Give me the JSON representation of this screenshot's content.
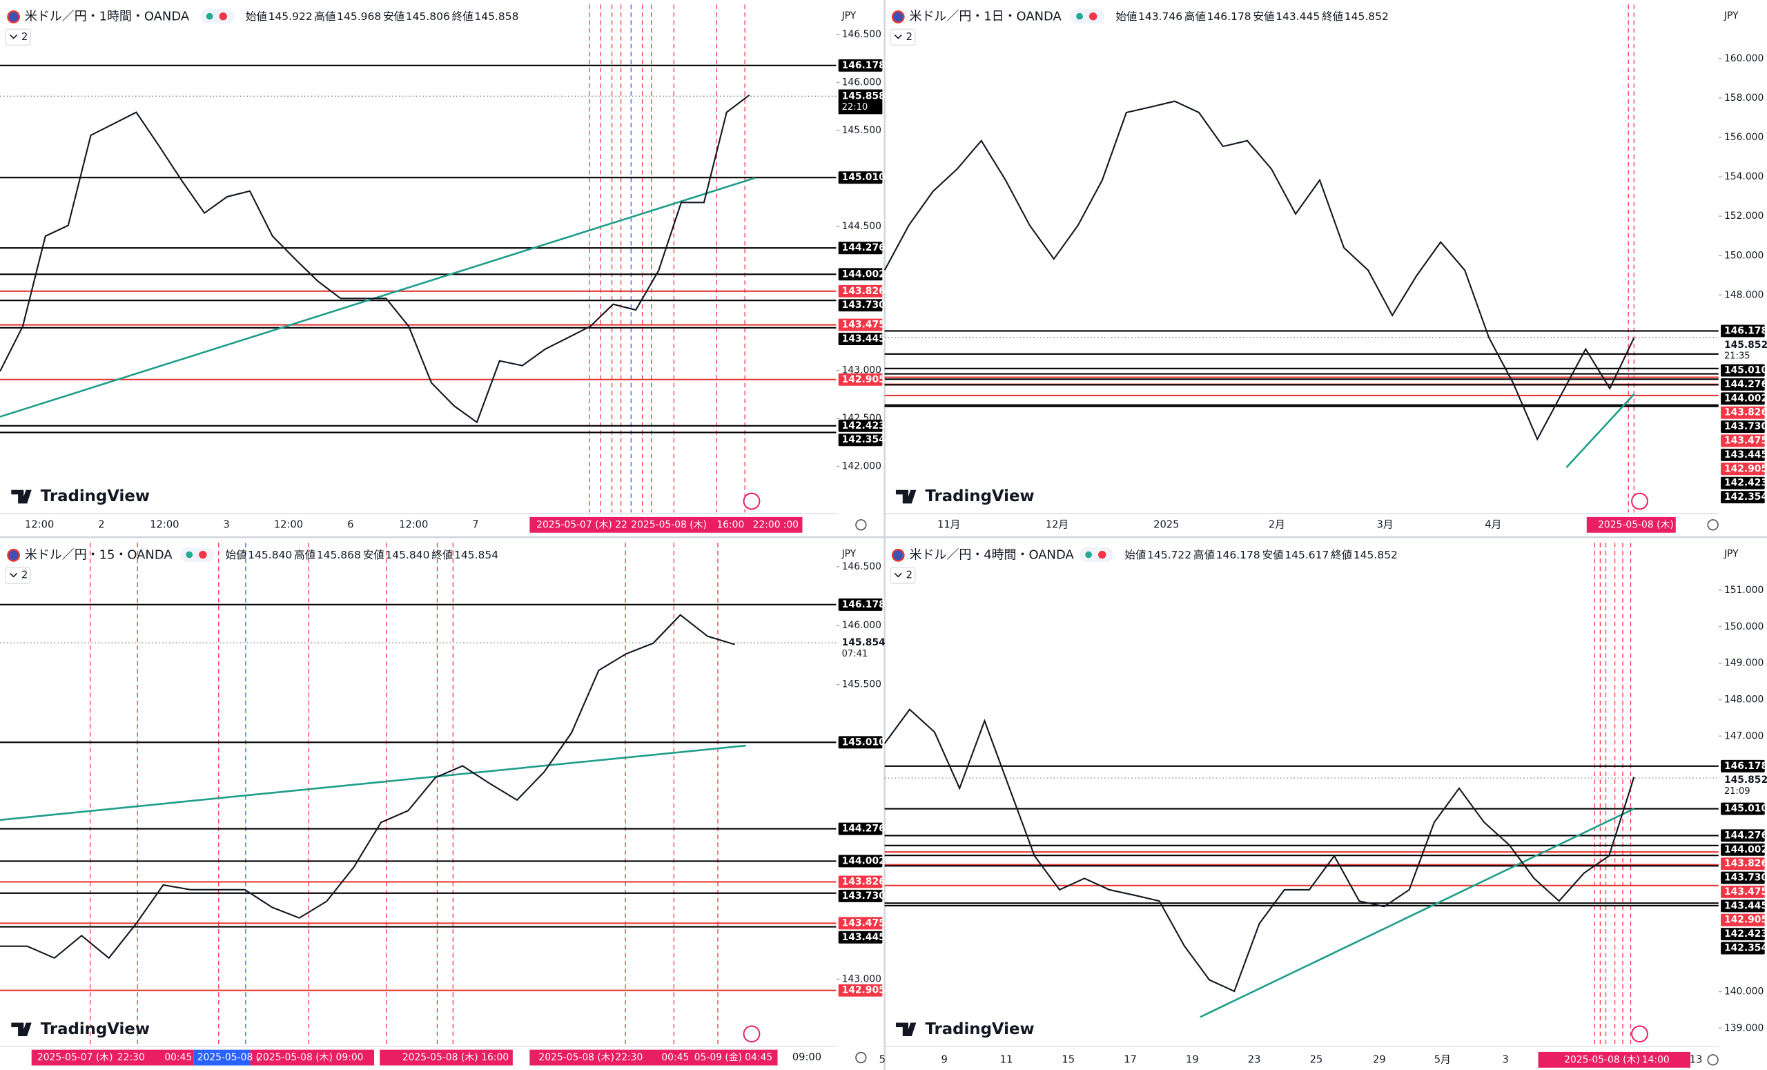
{
  "brand": "TradingView",
  "currency": "JPY",
  "indicator_count": "2",
  "levels": [
    {
      "value": 146.178,
      "label": "146.178",
      "color": "#000000"
    },
    {
      "value": 145.01,
      "label": "145.010",
      "color": "#000000"
    },
    {
      "value": 144.276,
      "label": "144.276",
      "color": "#000000"
    },
    {
      "value": 144.002,
      "label": "144.002",
      "color": "#000000"
    },
    {
      "value": 143.826,
      "label": "143.826",
      "color": "#e53935"
    },
    {
      "value": 143.73,
      "label": "143.730",
      "color": "#000000"
    },
    {
      "value": 143.475,
      "label": "143.475",
      "color": "#e53935"
    },
    {
      "value": 143.445,
      "label": "143.445",
      "color": "#000000"
    },
    {
      "value": 142.905,
      "label": "142.905",
      "color": "#e53935"
    },
    {
      "value": 142.423,
      "label": "142.423",
      "color": "#000000"
    },
    {
      "value": 142.354,
      "label": "142.354",
      "color": "#000000"
    }
  ],
  "panels": [
    {
      "symbol": "米ドル／円・1時間・OANDA",
      "ohlc": [
        {
          "label": "始値",
          "value": "145.922"
        },
        {
          "label": "高値",
          "value": "145.968"
        },
        {
          "label": "安値",
          "value": "145.806"
        },
        {
          "label": "終値",
          "value": "145.858"
        }
      ],
      "ylim": [
        141.52,
        146.86
      ],
      "yticks": [
        {
          "value": 146.5,
          "label": "146.500"
        },
        {
          "value": 146,
          "label": "146.000"
        },
        {
          "value": 145.5,
          "label": "145.500"
        },
        {
          "value": 144.5,
          "label": "144.500"
        },
        {
          "value": 143,
          "label": "143.000"
        },
        {
          "value": 142.5,
          "label": "142.500"
        },
        {
          "value": 142,
          "label": "142.000"
        }
      ],
      "last": {
        "value": 145.858,
        "label": "145.858",
        "countdown": "22:10"
      },
      "closes": [
        142.99,
        143.46,
        144.4,
        144.51,
        145.45,
        145.57,
        145.69,
        145.34,
        144.98,
        144.64,
        144.81,
        144.87,
        144.4,
        144.16,
        143.93,
        143.75,
        143.75,
        143.75,
        143.46,
        142.87,
        142.63,
        142.46,
        143.1,
        143.05,
        143.22,
        143.34,
        143.46,
        143.69,
        143.63,
        144.04,
        144.75,
        144.75,
        145.69,
        145.87
      ],
      "xlabels": [
        "12:00",
        "2",
        "12:00",
        "3",
        "12:00",
        "6",
        "12:00",
        "7"
      ],
      "markers": [
        "2025-05-07 (木)  22",
        "2025-05-08 (木)",
        "16:00",
        "22:00",
        ":00"
      ]
    },
    {
      "symbol": "米ドル／円・1日・OANDA",
      "ohlc": [
        {
          "label": "始値",
          "value": "143.746"
        },
        {
          "label": "高値",
          "value": "146.178"
        },
        {
          "label": "安値",
          "value": "143.445"
        },
        {
          "label": "終値",
          "value": "145.852"
        }
      ],
      "ylim": [
        136.97,
        162.97
      ],
      "yticks": [
        {
          "value": 160,
          "label": "160.000"
        },
        {
          "value": 158,
          "label": "158.000"
        },
        {
          "value": 156,
          "label": "156.000"
        },
        {
          "value": 154,
          "label": "154.000"
        },
        {
          "value": 152,
          "label": "152.000"
        },
        {
          "value": 150,
          "label": "150.000"
        },
        {
          "value": 148,
          "label": "148.000"
        }
      ],
      "last": {
        "value": 145.852,
        "label": "145.852",
        "countdown": "21:35"
      },
      "closes": [
        149.26,
        151.54,
        153.26,
        154.4,
        155.83,
        153.83,
        151.54,
        149.83,
        151.54,
        153.83,
        157.26,
        157.54,
        157.83,
        157.26,
        155.54,
        155.83,
        154.4,
        152.11,
        153.83,
        150.4,
        149.26,
        146.97,
        148.97,
        150.69,
        149.26,
        145.83,
        143.54,
        140.69,
        142.97,
        145.26,
        143.26,
        145.83
      ],
      "xlabels": [
        "11月",
        "12月",
        "2025",
        "2月",
        "3月",
        "4月"
      ],
      "markers": [
        "2025-05-08 (木)"
      ]
    },
    {
      "symbol": "米ドル／円・15・OANDA",
      "ohlc": [
        {
          "label": "始値",
          "value": "145.840"
        },
        {
          "label": "高値",
          "value": "145.868"
        },
        {
          "label": "安値",
          "value": "145.840"
        },
        {
          "label": "終値",
          "value": "145.854"
        }
      ],
      "ylim": [
        142.44,
        146.74
      ],
      "yticks": [
        {
          "value": 146.5,
          "label": "146.500"
        },
        {
          "value": 146,
          "label": "146.000"
        },
        {
          "value": 145.5,
          "label": "145.500"
        },
        {
          "value": 143,
          "label": "143.000"
        }
      ],
      "last": {
        "value": 145.854,
        "label": "145.854",
        "countdown": "07:41"
      },
      "closes": [
        143.28,
        143.28,
        143.18,
        143.37,
        143.18,
        143.47,
        143.8,
        143.76,
        143.76,
        143.76,
        143.61,
        143.52,
        143.66,
        143.95,
        144.33,
        144.43,
        144.71,
        144.81,
        144.66,
        144.52,
        144.76,
        145.09,
        145.62,
        145.76,
        145.85,
        146.09,
        145.91,
        145.84
      ],
      "xlabels": [
        "09:00"
      ],
      "markers": [
        "2025-05-07 (木)",
        "22:30",
        "00:45",
        "2025-05-08 (",
        "2025-05-08 (木)",
        "09:00",
        "2025-05-08 (木)",
        "16:00",
        "2025-05-08 (木)",
        "22:30",
        "00:45",
        "05-09 (金)",
        "04:45"
      ]
    },
    {
      "symbol": "米ドル／円・4時間・OANDA",
      "ohlc": [
        {
          "label": "始値",
          "value": "145.722"
        },
        {
          "label": "高値",
          "value": "146.178"
        },
        {
          "label": "安値",
          "value": "145.617"
        },
        {
          "label": "終値",
          "value": "145.852"
        }
      ],
      "ylim": [
        138.53,
        152.42
      ],
      "yticks": [
        {
          "value": 151,
          "label": "151.000"
        },
        {
          "value": 150,
          "label": "150.000"
        },
        {
          "value": 149,
          "label": "149.000"
        },
        {
          "value": 148,
          "label": "148.000"
        },
        {
          "value": 147,
          "label": "147.000"
        },
        {
          "value": 140,
          "label": "140.000"
        },
        {
          "value": 139,
          "label": "139.000"
        }
      ],
      "last": {
        "value": 145.852,
        "label": "145.852",
        "countdown": "21:09"
      },
      "closes": [
        146.8,
        147.73,
        147.11,
        145.57,
        147.42,
        145.57,
        143.72,
        142.79,
        143.1,
        142.79,
        142.64,
        142.48,
        141.25,
        140.32,
        140.01,
        141.86,
        142.79,
        142.79,
        143.72,
        142.48,
        142.33,
        142.79,
        144.64,
        145.57,
        144.64,
        144.02,
        143.1,
        142.48,
        143.25,
        143.72,
        145.88
      ],
      "xlabels": [
        "5",
        "9",
        "11",
        "15",
        "17",
        "19",
        "23",
        "25",
        "29",
        "5月",
        "3",
        "13"
      ],
      "markers": [
        "2025-05-08 (木)",
        "14:00"
      ]
    }
  ]
}
